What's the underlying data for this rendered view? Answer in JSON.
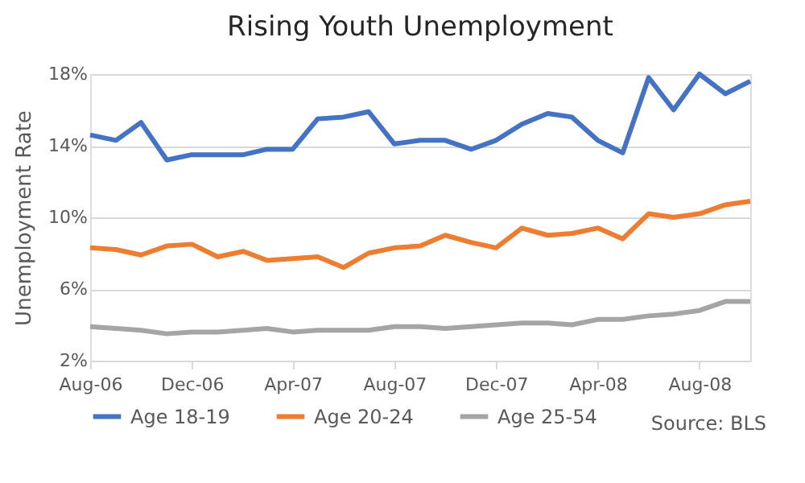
{
  "chart_data": {
    "type": "line",
    "title": "Rising Youth Unemployment",
    "ylabel": "Unemployment Rate",
    "x": [
      "2006-08",
      "2006-09",
      "2006-10",
      "2006-11",
      "2006-12",
      "2007-01",
      "2007-02",
      "2007-03",
      "2007-04",
      "2007-05",
      "2007-06",
      "2007-07",
      "2007-08",
      "2007-09",
      "2007-10",
      "2007-11",
      "2007-12",
      "2008-01",
      "2008-02",
      "2008-03",
      "2008-04",
      "2008-05",
      "2008-06",
      "2008-07",
      "2008-08",
      "2008-09",
      "2008-10"
    ],
    "series": [
      {
        "name": "Age 18-19",
        "color": "#4472c4",
        "values": [
          14.6,
          14.3,
          15.3,
          13.2,
          13.5,
          13.5,
          13.5,
          13.8,
          13.8,
          15.5,
          15.6,
          15.9,
          14.1,
          14.3,
          14.3,
          13.8,
          14.3,
          15.2,
          15.8,
          15.6,
          14.3,
          13.6,
          17.8,
          16.0,
          18.0,
          16.9,
          17.6
        ]
      },
      {
        "name": "Age 20-24",
        "color": "#ed7d31",
        "values": [
          8.3,
          8.2,
          7.9,
          8.4,
          8.5,
          7.8,
          8.1,
          7.6,
          7.7,
          7.8,
          7.2,
          8.0,
          8.3,
          8.4,
          9.0,
          8.6,
          8.3,
          9.4,
          9.0,
          9.1,
          9.4,
          8.8,
          10.2,
          10.0,
          10.2,
          10.7,
          10.9
        ]
      },
      {
        "name": "Age 25-54",
        "color": "#a5a5a5",
        "values": [
          3.9,
          3.8,
          3.7,
          3.5,
          3.6,
          3.6,
          3.7,
          3.8,
          3.6,
          3.7,
          3.7,
          3.7,
          3.9,
          3.9,
          3.8,
          3.9,
          4.0,
          4.1,
          4.1,
          4.0,
          4.3,
          4.3,
          4.5,
          4.6,
          4.8,
          5.3,
          5.3
        ]
      }
    ],
    "xlim": [
      "2006-08",
      "2008-10"
    ],
    "xticks": [
      {
        "value": "2006-08",
        "label": "Aug-06"
      },
      {
        "value": "2006-12",
        "label": "Dec-06"
      },
      {
        "value": "2007-04",
        "label": "Apr-07"
      },
      {
        "value": "2007-08",
        "label": "Aug-07"
      },
      {
        "value": "2007-12",
        "label": "Dec-07"
      },
      {
        "value": "2008-04",
        "label": "Apr-08"
      },
      {
        "value": "2008-08",
        "label": "Aug-08"
      }
    ],
    "ylim": [
      2,
      18
    ],
    "yticks": [
      {
        "value": 2,
        "label": "2%"
      },
      {
        "value": 6,
        "label": "6%"
      },
      {
        "value": 10,
        "label": "10%"
      },
      {
        "value": 14,
        "label": "14%"
      },
      {
        "value": 18,
        "label": "18%"
      }
    ],
    "grid": "y",
    "legend": "bottom",
    "marker": "none",
    "line_style": "solid",
    "annotations": [
      "Source: BLS"
    ]
  }
}
